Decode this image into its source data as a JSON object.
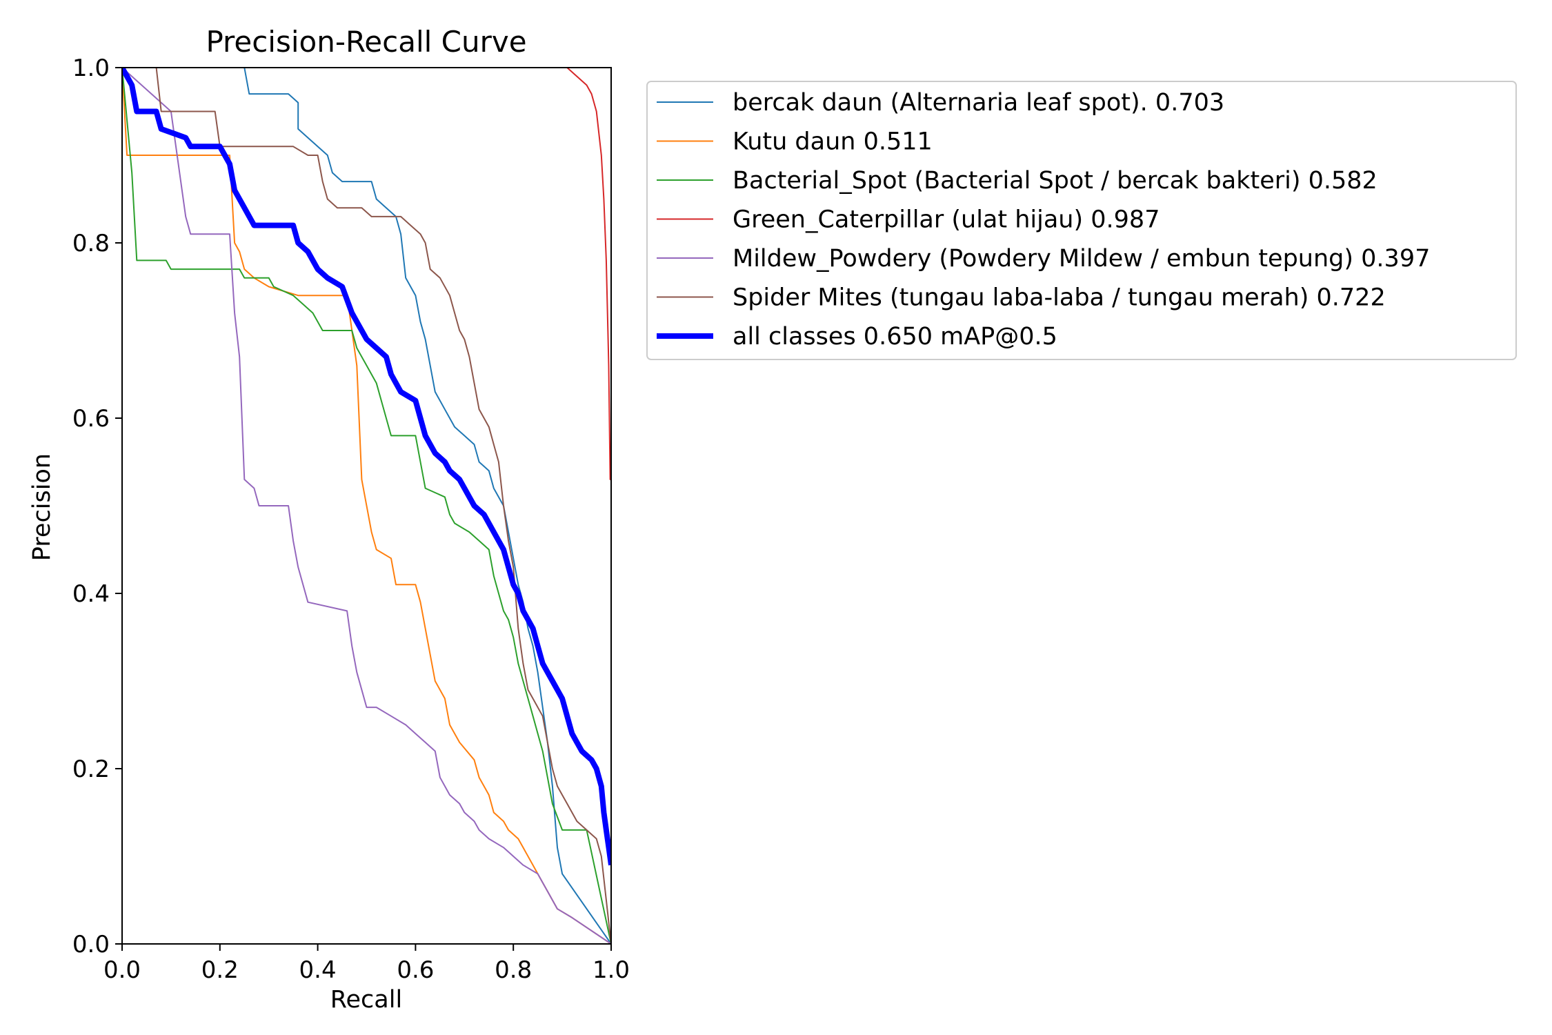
{
  "chart_data": {
    "type": "line",
    "title": "Precision-Recall Curve",
    "xlabel": "Recall",
    "ylabel": "Precision",
    "xlim": [
      0,
      1
    ],
    "ylim": [
      0,
      1
    ],
    "xticks": [
      "0.0",
      "0.2",
      "0.4",
      "0.6",
      "0.8",
      "1.0"
    ],
    "yticks": [
      "0.0",
      "0.2",
      "0.4",
      "0.6",
      "0.8",
      "1.0"
    ],
    "grid": false,
    "legend_position": "outside upper right",
    "series": [
      {
        "name": "bercak daun (Alternaria leaf spot). 0.703",
        "color": "#1f77b4",
        "width": "thin",
        "points": [
          [
            0.0,
            1.0
          ],
          [
            0.25,
            1.0
          ],
          [
            0.26,
            0.97
          ],
          [
            0.34,
            0.97
          ],
          [
            0.36,
            0.96
          ],
          [
            0.36,
            0.93
          ],
          [
            0.38,
            0.92
          ],
          [
            0.42,
            0.9
          ],
          [
            0.43,
            0.88
          ],
          [
            0.45,
            0.87
          ],
          [
            0.51,
            0.87
          ],
          [
            0.52,
            0.85
          ],
          [
            0.54,
            0.84
          ],
          [
            0.56,
            0.83
          ],
          [
            0.57,
            0.81
          ],
          [
            0.58,
            0.76
          ],
          [
            0.6,
            0.74
          ],
          [
            0.61,
            0.71
          ],
          [
            0.62,
            0.69
          ],
          [
            0.63,
            0.66
          ],
          [
            0.64,
            0.63
          ],
          [
            0.66,
            0.61
          ],
          [
            0.67,
            0.6
          ],
          [
            0.68,
            0.59
          ],
          [
            0.7,
            0.58
          ],
          [
            0.72,
            0.57
          ],
          [
            0.73,
            0.55
          ],
          [
            0.75,
            0.54
          ],
          [
            0.76,
            0.52
          ],
          [
            0.78,
            0.5
          ],
          [
            0.79,
            0.47
          ],
          [
            0.8,
            0.44
          ],
          [
            0.81,
            0.41
          ],
          [
            0.82,
            0.39
          ],
          [
            0.83,
            0.36
          ],
          [
            0.84,
            0.34
          ],
          [
            0.85,
            0.31
          ],
          [
            0.86,
            0.27
          ],
          [
            0.87,
            0.23
          ],
          [
            0.88,
            0.18
          ],
          [
            0.89,
            0.11
          ],
          [
            0.9,
            0.08
          ],
          [
            1.0,
            0.0
          ]
        ]
      },
      {
        "name": "Kutu daun 0.511",
        "color": "#ff7f0e",
        "width": "thin",
        "points": [
          [
            0.0,
            1.0
          ],
          [
            0.01,
            0.9
          ],
          [
            0.22,
            0.9
          ],
          [
            0.23,
            0.8
          ],
          [
            0.24,
            0.79
          ],
          [
            0.25,
            0.77
          ],
          [
            0.27,
            0.76
          ],
          [
            0.3,
            0.75
          ],
          [
            0.36,
            0.74
          ],
          [
            0.46,
            0.74
          ],
          [
            0.47,
            0.7
          ],
          [
            0.48,
            0.66
          ],
          [
            0.49,
            0.53
          ],
          [
            0.5,
            0.5
          ],
          [
            0.51,
            0.47
          ],
          [
            0.52,
            0.45
          ],
          [
            0.55,
            0.44
          ],
          [
            0.56,
            0.41
          ],
          [
            0.6,
            0.41
          ],
          [
            0.61,
            0.39
          ],
          [
            0.62,
            0.36
          ],
          [
            0.63,
            0.33
          ],
          [
            0.64,
            0.3
          ],
          [
            0.66,
            0.28
          ],
          [
            0.67,
            0.25
          ],
          [
            0.69,
            0.23
          ],
          [
            0.72,
            0.21
          ],
          [
            0.73,
            0.19
          ],
          [
            0.75,
            0.17
          ],
          [
            0.76,
            0.15
          ],
          [
            0.78,
            0.14
          ],
          [
            0.79,
            0.13
          ],
          [
            0.81,
            0.12
          ],
          [
            0.82,
            0.11
          ],
          [
            0.84,
            0.09
          ],
          [
            0.85,
            0.08
          ],
          [
            0.86,
            0.07
          ],
          [
            0.87,
            0.06
          ],
          [
            0.88,
            0.05
          ],
          [
            0.89,
            0.04
          ],
          [
            0.92,
            0.03
          ],
          [
            1.0,
            0.0
          ]
        ]
      },
      {
        "name": "Bacterial_Spot (Bacterial Spot / bercak bakteri) 0.582",
        "color": "#2ca02c",
        "width": "thin",
        "points": [
          [
            0.0,
            1.0
          ],
          [
            0.02,
            0.88
          ],
          [
            0.03,
            0.78
          ],
          [
            0.09,
            0.78
          ],
          [
            0.1,
            0.77
          ],
          [
            0.24,
            0.77
          ],
          [
            0.25,
            0.76
          ],
          [
            0.3,
            0.76
          ],
          [
            0.31,
            0.75
          ],
          [
            0.35,
            0.74
          ],
          [
            0.37,
            0.73
          ],
          [
            0.39,
            0.72
          ],
          [
            0.41,
            0.7
          ],
          [
            0.47,
            0.7
          ],
          [
            0.48,
            0.68
          ],
          [
            0.5,
            0.66
          ],
          [
            0.52,
            0.64
          ],
          [
            0.53,
            0.62
          ],
          [
            0.55,
            0.58
          ],
          [
            0.6,
            0.58
          ],
          [
            0.61,
            0.55
          ],
          [
            0.62,
            0.52
          ],
          [
            0.66,
            0.51
          ],
          [
            0.67,
            0.49
          ],
          [
            0.68,
            0.48
          ],
          [
            0.71,
            0.47
          ],
          [
            0.73,
            0.46
          ],
          [
            0.75,
            0.45
          ],
          [
            0.76,
            0.42
          ],
          [
            0.77,
            0.4
          ],
          [
            0.78,
            0.38
          ],
          [
            0.79,
            0.37
          ],
          [
            0.8,
            0.35
          ],
          [
            0.81,
            0.32
          ],
          [
            0.82,
            0.3
          ],
          [
            0.83,
            0.28
          ],
          [
            0.84,
            0.26
          ],
          [
            0.86,
            0.22
          ],
          [
            0.87,
            0.19
          ],
          [
            0.88,
            0.16
          ],
          [
            0.9,
            0.13
          ],
          [
            0.95,
            0.13
          ],
          [
            1.0,
            0.0
          ]
        ]
      },
      {
        "name": "Green_Caterpillar (ulat hijau) 0.987",
        "color": "#d62728",
        "width": "thin",
        "points": [
          [
            0.0,
            1.0
          ],
          [
            0.91,
            1.0
          ],
          [
            0.93,
            0.99
          ],
          [
            0.95,
            0.98
          ],
          [
            0.96,
            0.97
          ],
          [
            0.97,
            0.95
          ],
          [
            0.98,
            0.9
          ],
          [
            0.985,
            0.85
          ],
          [
            0.99,
            0.78
          ],
          [
            0.995,
            0.66
          ],
          [
            0.998,
            0.53
          ],
          [
            1.0,
            0.53
          ],
          [
            1.0,
            0.0
          ]
        ]
      },
      {
        "name": "Mildew_Powdery (Powdery Mildew / embun tepung) 0.397",
        "color": "#9467bd",
        "width": "thin",
        "points": [
          [
            0.0,
            1.0
          ],
          [
            0.1,
            0.95
          ],
          [
            0.12,
            0.87
          ],
          [
            0.13,
            0.83
          ],
          [
            0.14,
            0.81
          ],
          [
            0.22,
            0.81
          ],
          [
            0.23,
            0.72
          ],
          [
            0.24,
            0.67
          ],
          [
            0.25,
            0.53
          ],
          [
            0.27,
            0.52
          ],
          [
            0.28,
            0.5
          ],
          [
            0.34,
            0.5
          ],
          [
            0.35,
            0.46
          ],
          [
            0.36,
            0.43
          ],
          [
            0.38,
            0.39
          ],
          [
            0.46,
            0.38
          ],
          [
            0.47,
            0.34
          ],
          [
            0.48,
            0.31
          ],
          [
            0.49,
            0.29
          ],
          [
            0.5,
            0.27
          ],
          [
            0.52,
            0.27
          ],
          [
            0.55,
            0.26
          ],
          [
            0.58,
            0.25
          ],
          [
            0.6,
            0.24
          ],
          [
            0.62,
            0.23
          ],
          [
            0.64,
            0.22
          ],
          [
            0.65,
            0.19
          ],
          [
            0.67,
            0.17
          ],
          [
            0.69,
            0.16
          ],
          [
            0.7,
            0.15
          ],
          [
            0.72,
            0.14
          ],
          [
            0.73,
            0.13
          ],
          [
            0.75,
            0.12
          ],
          [
            0.78,
            0.11
          ],
          [
            0.8,
            0.1
          ],
          [
            0.82,
            0.09
          ],
          [
            0.85,
            0.08
          ],
          [
            0.86,
            0.07
          ],
          [
            0.87,
            0.06
          ],
          [
            0.88,
            0.05
          ],
          [
            0.89,
            0.04
          ],
          [
            0.92,
            0.03
          ],
          [
            1.0,
            0.0
          ]
        ]
      },
      {
        "name": "Spider Mites (tungau laba-laba / tungau merah) 0.722",
        "color": "#8c564b",
        "width": "thin",
        "points": [
          [
            0.0,
            1.0
          ],
          [
            0.07,
            1.0
          ],
          [
            0.08,
            0.95
          ],
          [
            0.19,
            0.95
          ],
          [
            0.2,
            0.91
          ],
          [
            0.35,
            0.91
          ],
          [
            0.38,
            0.9
          ],
          [
            0.4,
            0.9
          ],
          [
            0.41,
            0.87
          ],
          [
            0.42,
            0.85
          ],
          [
            0.44,
            0.84
          ],
          [
            0.49,
            0.84
          ],
          [
            0.51,
            0.83
          ],
          [
            0.57,
            0.83
          ],
          [
            0.59,
            0.82
          ],
          [
            0.61,
            0.81
          ],
          [
            0.62,
            0.8
          ],
          [
            0.63,
            0.77
          ],
          [
            0.65,
            0.76
          ],
          [
            0.67,
            0.74
          ],
          [
            0.68,
            0.72
          ],
          [
            0.69,
            0.7
          ],
          [
            0.7,
            0.69
          ],
          [
            0.71,
            0.67
          ],
          [
            0.72,
            0.64
          ],
          [
            0.73,
            0.61
          ],
          [
            0.75,
            0.59
          ],
          [
            0.76,
            0.57
          ],
          [
            0.77,
            0.55
          ],
          [
            0.78,
            0.5
          ],
          [
            0.79,
            0.46
          ],
          [
            0.8,
            0.43
          ],
          [
            0.81,
            0.36
          ],
          [
            0.82,
            0.32
          ],
          [
            0.83,
            0.29
          ],
          [
            0.84,
            0.28
          ],
          [
            0.86,
            0.26
          ],
          [
            0.87,
            0.23
          ],
          [
            0.88,
            0.2
          ],
          [
            0.89,
            0.18
          ],
          [
            0.9,
            0.17
          ],
          [
            0.91,
            0.16
          ],
          [
            0.92,
            0.15
          ],
          [
            0.93,
            0.14
          ],
          [
            0.95,
            0.13
          ],
          [
            0.97,
            0.12
          ],
          [
            0.98,
            0.1
          ],
          [
            1.0,
            0.0
          ]
        ]
      },
      {
        "name": "all classes 0.650 mAP@0.5",
        "color": "#0000ff",
        "width": "thick",
        "points": [
          [
            0.0,
            1.0
          ],
          [
            0.01,
            0.99
          ],
          [
            0.02,
            0.98
          ],
          [
            0.03,
            0.95
          ],
          [
            0.07,
            0.95
          ],
          [
            0.08,
            0.93
          ],
          [
            0.13,
            0.92
          ],
          [
            0.14,
            0.91
          ],
          [
            0.2,
            0.91
          ],
          [
            0.21,
            0.9
          ],
          [
            0.22,
            0.89
          ],
          [
            0.23,
            0.86
          ],
          [
            0.25,
            0.84
          ],
          [
            0.27,
            0.82
          ],
          [
            0.35,
            0.82
          ],
          [
            0.36,
            0.8
          ],
          [
            0.38,
            0.79
          ],
          [
            0.4,
            0.77
          ],
          [
            0.42,
            0.76
          ],
          [
            0.45,
            0.75
          ],
          [
            0.47,
            0.72
          ],
          [
            0.48,
            0.71
          ],
          [
            0.49,
            0.7
          ],
          [
            0.5,
            0.69
          ],
          [
            0.52,
            0.68
          ],
          [
            0.54,
            0.67
          ],
          [
            0.55,
            0.65
          ],
          [
            0.56,
            0.64
          ],
          [
            0.57,
            0.63
          ],
          [
            0.6,
            0.62
          ],
          [
            0.61,
            0.6
          ],
          [
            0.62,
            0.58
          ],
          [
            0.63,
            0.57
          ],
          [
            0.64,
            0.56
          ],
          [
            0.66,
            0.55
          ],
          [
            0.67,
            0.54
          ],
          [
            0.69,
            0.53
          ],
          [
            0.7,
            0.52
          ],
          [
            0.71,
            0.51
          ],
          [
            0.72,
            0.5
          ],
          [
            0.74,
            0.49
          ],
          [
            0.75,
            0.48
          ],
          [
            0.76,
            0.47
          ],
          [
            0.77,
            0.46
          ],
          [
            0.78,
            0.45
          ],
          [
            0.79,
            0.43
          ],
          [
            0.8,
            0.41
          ],
          [
            0.81,
            0.4
          ],
          [
            0.82,
            0.38
          ],
          [
            0.83,
            0.37
          ],
          [
            0.84,
            0.36
          ],
          [
            0.85,
            0.34
          ],
          [
            0.86,
            0.32
          ],
          [
            0.87,
            0.31
          ],
          [
            0.88,
            0.3
          ],
          [
            0.89,
            0.29
          ],
          [
            0.9,
            0.28
          ],
          [
            0.91,
            0.26
          ],
          [
            0.92,
            0.24
          ],
          [
            0.93,
            0.23
          ],
          [
            0.94,
            0.22
          ],
          [
            0.96,
            0.21
          ],
          [
            0.97,
            0.2
          ],
          [
            0.98,
            0.18
          ],
          [
            0.985,
            0.15
          ],
          [
            0.99,
            0.13
          ],
          [
            0.995,
            0.11
          ],
          [
            1.0,
            0.09
          ]
        ]
      }
    ]
  }
}
